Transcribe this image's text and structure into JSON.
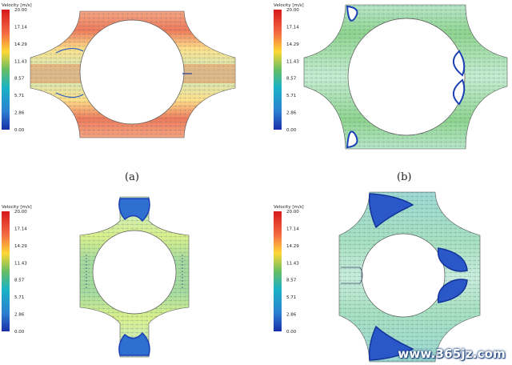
{
  "legend": {
    "title": "Velocity [m/s]",
    "ticks": [
      "20.00",
      "17.14",
      "14.29",
      "11.43",
      "8.57",
      "5.71",
      "2.86",
      "0.00"
    ]
  },
  "captions": {
    "a": "(a)",
    "b": "(b)"
  },
  "watermark": "www.365jz.com",
  "panels": {
    "a": {
      "velocity_level": 0.75,
      "recirculation": "small"
    },
    "b": {
      "velocity_level": 0.45,
      "recirculation": "corner"
    },
    "c": {
      "velocity_level": 0.45,
      "recirculation": "top-bottom"
    },
    "d": {
      "velocity_level": 0.3,
      "recirculation": "large"
    }
  },
  "colors": {
    "high": "#d73027",
    "mid_high": "#fee08b",
    "mid": "#91cf60",
    "mid_low": "#4fc1d8",
    "low": "#2140b0",
    "vortex": "#1b3fb5"
  }
}
